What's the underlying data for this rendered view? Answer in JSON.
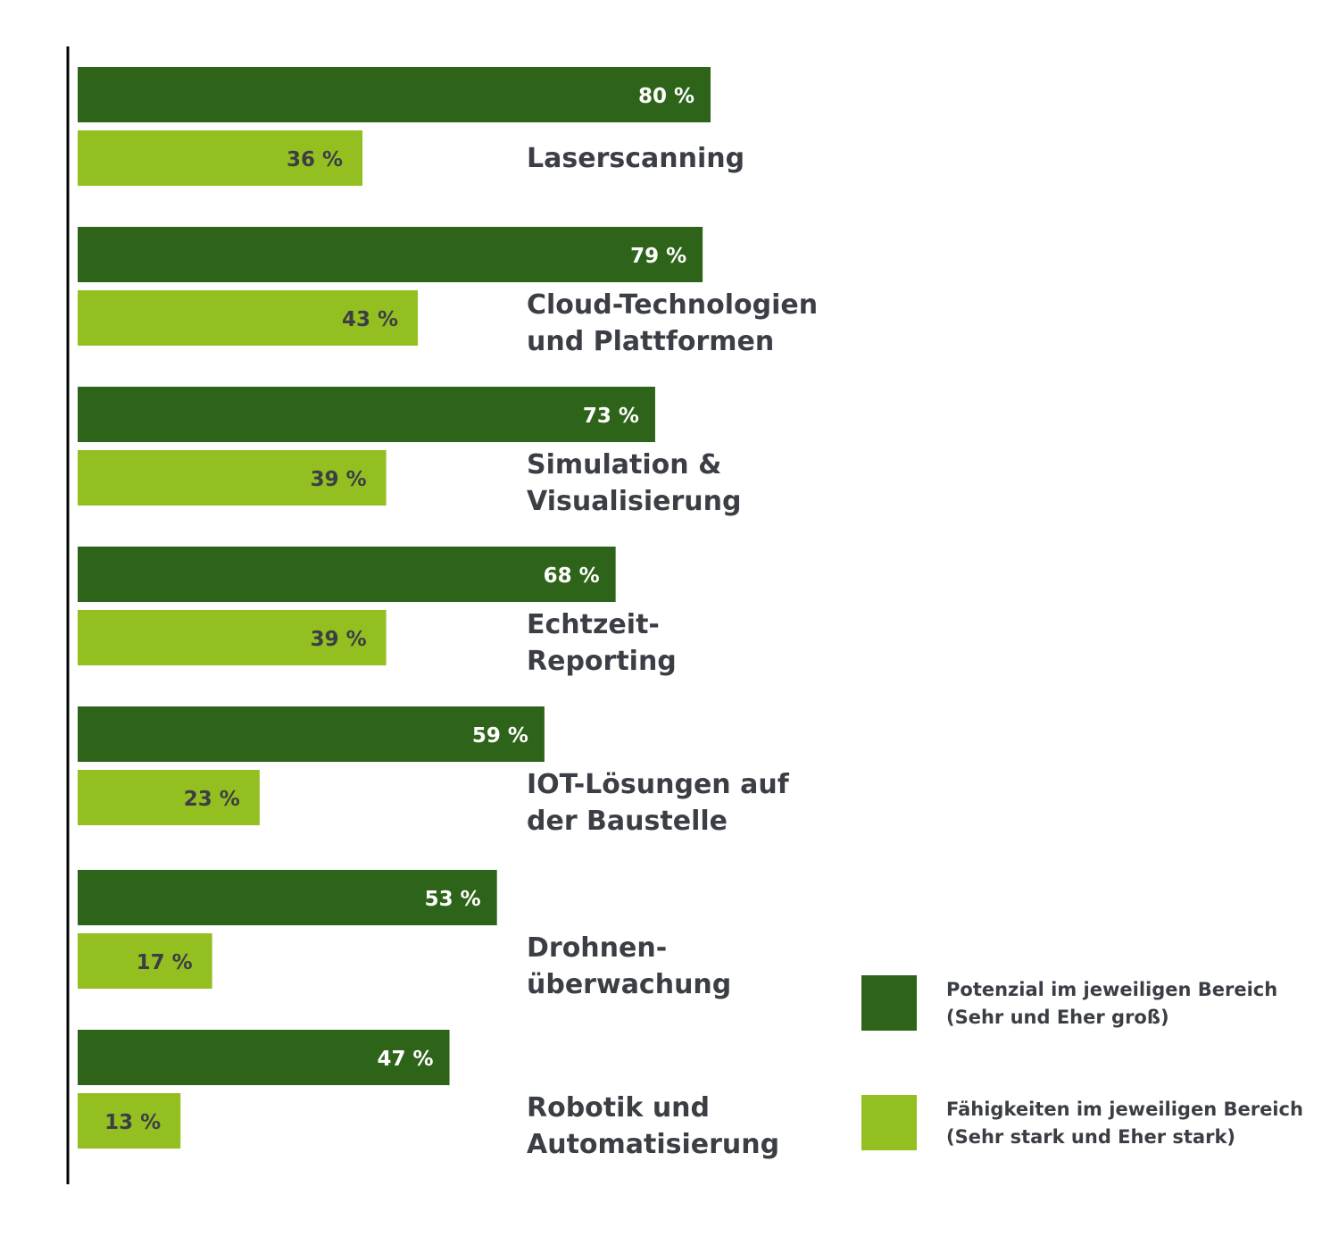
{
  "colors": {
    "potential": "#2e6419",
    "capability": "#94bf21",
    "axis": "#000000",
    "label_on_dark": "#ffffff",
    "label_on_light": "#3b3f45",
    "category_text": "#3b3f45"
  },
  "chart_data": {
    "type": "bar",
    "orientation": "horizontal",
    "unit": "%",
    "categories": [
      [
        "Laserscanning"
      ],
      [
        "Cloud-Technologien",
        "und Plattformen"
      ],
      [
        "Simulation &",
        "Visualisierung"
      ],
      [
        "Echtzeit-",
        "Reporting"
      ],
      [
        "IOT-Lösungen auf",
        "der Baustelle"
      ],
      [
        "Drohnen-",
        "überwachung"
      ],
      [
        "Robotik und",
        "Automatisierung"
      ]
    ],
    "series": [
      {
        "name": [
          "Potenzial im jeweiligen Bereich",
          "(Sehr und Eher groß)"
        ],
        "values": [
          80,
          79,
          73,
          68,
          59,
          53,
          47
        ],
        "labels": [
          "80 %",
          "79 %",
          "73 %",
          "68 %",
          "59 %",
          "53 %",
          "47 %"
        ]
      },
      {
        "name": [
          "Fähigkeiten im jeweiligen Bereich",
          "(Sehr stark und Eher stark)"
        ],
        "values": [
          36,
          43,
          39,
          39,
          23,
          17,
          13
        ],
        "labels": [
          "36 %",
          "43 %",
          "39 %",
          "39 %",
          "23 %",
          "17 %",
          "13 %"
        ]
      }
    ],
    "xlim": [
      0,
      100
    ],
    "grid": false,
    "legend_position": "bottom-right"
  }
}
